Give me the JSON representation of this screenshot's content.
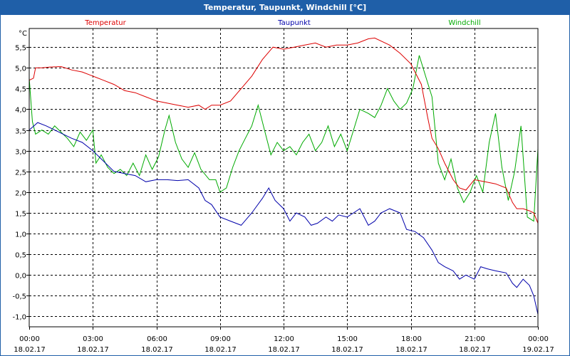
{
  "window": {
    "title": "Temperatur, Taupunkt, Windchill [°C]"
  },
  "chart_data": {
    "type": "line",
    "title": "Temperatur, Taupunkt, Windchill [°C]",
    "ylabel": "°C",
    "ylim": [
      -1.25,
      5.95
    ],
    "xlim": [
      0,
      24
    ],
    "grid": true,
    "legend_position": "top",
    "y_ticks": [
      "5,5",
      "5,0",
      "4,5",
      "4,0",
      "3,5",
      "3,0",
      "2,5",
      "2,0",
      "1,5",
      "1,0",
      "0,5",
      "0,0",
      "-0,5",
      "-1,0"
    ],
    "y_tick_values": [
      5.5,
      5.0,
      4.5,
      4.0,
      3.5,
      3.0,
      2.5,
      2.0,
      1.5,
      1.0,
      0.5,
      0.0,
      -0.5,
      -1.0
    ],
    "x_ticks": [
      {
        "time": "00:00",
        "date": "18.02.17",
        "h": 0
      },
      {
        "time": "03:00",
        "date": "18.02.17",
        "h": 3
      },
      {
        "time": "06:00",
        "date": "18.02.17",
        "h": 6
      },
      {
        "time": "09:00",
        "date": "18.02.17",
        "h": 9
      },
      {
        "time": "12:00",
        "date": "18.02.17",
        "h": 12
      },
      {
        "time": "15:00",
        "date": "18.02.17",
        "h": 15
      },
      {
        "time": "18:00",
        "date": "18.02.17",
        "h": 18
      },
      {
        "time": "21:00",
        "date": "18.02.17",
        "h": 21
      },
      {
        "time": "00:00",
        "date": "19.02.17",
        "h": 24
      }
    ],
    "series": [
      {
        "name": "Temperatur",
        "color": "#dd0000",
        "points": [
          [
            0,
            4.7
          ],
          [
            0.2,
            4.75
          ],
          [
            0.3,
            5.0
          ],
          [
            0.6,
            5.0
          ],
          [
            1.0,
            5.02
          ],
          [
            1.5,
            5.03
          ],
          [
            2.0,
            4.95
          ],
          [
            2.5,
            4.9
          ],
          [
            3.0,
            4.8
          ],
          [
            3.5,
            4.7
          ],
          [
            4.0,
            4.6
          ],
          [
            4.5,
            4.45
          ],
          [
            5.0,
            4.4
          ],
          [
            5.5,
            4.3
          ],
          [
            6.0,
            4.2
          ],
          [
            6.5,
            4.15
          ],
          [
            7.0,
            4.1
          ],
          [
            7.5,
            4.05
          ],
          [
            8.0,
            4.1
          ],
          [
            8.3,
            4.0
          ],
          [
            8.6,
            4.1
          ],
          [
            9.0,
            4.1
          ],
          [
            9.5,
            4.2
          ],
          [
            10.0,
            4.5
          ],
          [
            10.5,
            4.8
          ],
          [
            11.0,
            5.2
          ],
          [
            11.5,
            5.5
          ],
          [
            12.0,
            5.45
          ],
          [
            12.5,
            5.5
          ],
          [
            13.0,
            5.55
          ],
          [
            13.5,
            5.6
          ],
          [
            14.0,
            5.5
          ],
          [
            14.5,
            5.55
          ],
          [
            15.0,
            5.55
          ],
          [
            15.5,
            5.6
          ],
          [
            16.0,
            5.7
          ],
          [
            16.3,
            5.72
          ],
          [
            17.0,
            5.55
          ],
          [
            17.5,
            5.35
          ],
          [
            18.0,
            5.1
          ],
          [
            18.5,
            4.6
          ],
          [
            18.8,
            3.8
          ],
          [
            19.0,
            3.3
          ],
          [
            19.3,
            3.05
          ],
          [
            19.6,
            2.7
          ],
          [
            20.0,
            2.3
          ],
          [
            20.3,
            2.1
          ],
          [
            20.6,
            2.05
          ],
          [
            21.0,
            2.3
          ],
          [
            21.5,
            2.25
          ],
          [
            22.0,
            2.2
          ],
          [
            22.5,
            2.1
          ],
          [
            22.8,
            1.75
          ],
          [
            23.0,
            1.6
          ],
          [
            23.3,
            1.6
          ],
          [
            23.6,
            1.55
          ],
          [
            23.8,
            1.5
          ],
          [
            24.0,
            1.25
          ]
        ]
      },
      {
        "name": "Taupunkt",
        "color": "#0000aa",
        "points": [
          [
            0,
            3.5
          ],
          [
            0.4,
            3.68
          ],
          [
            0.8,
            3.6
          ],
          [
            1.2,
            3.5
          ],
          [
            1.6,
            3.4
          ],
          [
            2.0,
            3.3
          ],
          [
            2.5,
            3.2
          ],
          [
            3.0,
            3.0
          ],
          [
            3.3,
            2.85
          ],
          [
            3.6,
            2.7
          ],
          [
            4.0,
            2.5
          ],
          [
            4.5,
            2.45
          ],
          [
            5.0,
            2.4
          ],
          [
            5.5,
            2.25
          ],
          [
            6.0,
            2.3
          ],
          [
            6.5,
            2.3
          ],
          [
            7.0,
            2.28
          ],
          [
            7.5,
            2.3
          ],
          [
            8.0,
            2.1
          ],
          [
            8.3,
            1.8
          ],
          [
            8.6,
            1.7
          ],
          [
            9.0,
            1.4
          ],
          [
            9.5,
            1.3
          ],
          [
            10.0,
            1.2
          ],
          [
            10.5,
            1.5
          ],
          [
            11.0,
            1.85
          ],
          [
            11.3,
            2.1
          ],
          [
            11.6,
            1.8
          ],
          [
            12.0,
            1.6
          ],
          [
            12.3,
            1.3
          ],
          [
            12.6,
            1.5
          ],
          [
            13.0,
            1.4
          ],
          [
            13.3,
            1.2
          ],
          [
            13.6,
            1.25
          ],
          [
            14.0,
            1.4
          ],
          [
            14.3,
            1.3
          ],
          [
            14.6,
            1.45
          ],
          [
            15.0,
            1.4
          ],
          [
            15.3,
            1.5
          ],
          [
            15.6,
            1.6
          ],
          [
            16.0,
            1.2
          ],
          [
            16.3,
            1.3
          ],
          [
            16.6,
            1.5
          ],
          [
            17.0,
            1.6
          ],
          [
            17.5,
            1.5
          ],
          [
            17.8,
            1.1
          ],
          [
            18.2,
            1.05
          ],
          [
            18.6,
            0.9
          ],
          [
            19.0,
            0.6
          ],
          [
            19.3,
            0.3
          ],
          [
            19.6,
            0.2
          ],
          [
            20.0,
            0.1
          ],
          [
            20.3,
            -0.1
          ],
          [
            20.6,
            0.0
          ],
          [
            21.0,
            -0.1
          ],
          [
            21.3,
            0.2
          ],
          [
            21.6,
            0.15
          ],
          [
            22.0,
            0.1
          ],
          [
            22.5,
            0.05
          ],
          [
            22.8,
            -0.2
          ],
          [
            23.0,
            -0.3
          ],
          [
            23.3,
            -0.1
          ],
          [
            23.6,
            -0.25
          ],
          [
            23.8,
            -0.5
          ],
          [
            24.0,
            -0.95
          ]
        ]
      },
      {
        "name": "Windchill",
        "color": "#00aa00",
        "points": [
          [
            0,
            4.75
          ],
          [
            0.15,
            3.7
          ],
          [
            0.3,
            3.4
          ],
          [
            0.6,
            3.5
          ],
          [
            0.9,
            3.4
          ],
          [
            1.2,
            3.6
          ],
          [
            1.5,
            3.45
          ],
          [
            1.8,
            3.3
          ],
          [
            2.1,
            3.1
          ],
          [
            2.4,
            3.45
          ],
          [
            2.7,
            3.25
          ],
          [
            3.0,
            3.5
          ],
          [
            3.15,
            2.7
          ],
          [
            3.4,
            2.9
          ],
          [
            3.7,
            2.6
          ],
          [
            4.0,
            2.45
          ],
          [
            4.3,
            2.55
          ],
          [
            4.6,
            2.4
          ],
          [
            4.9,
            2.7
          ],
          [
            5.2,
            2.4
          ],
          [
            5.5,
            2.9
          ],
          [
            5.8,
            2.55
          ],
          [
            6.1,
            2.85
          ],
          [
            6.4,
            3.5
          ],
          [
            6.6,
            3.85
          ],
          [
            6.9,
            3.2
          ],
          [
            7.2,
            2.8
          ],
          [
            7.5,
            2.6
          ],
          [
            7.8,
            2.95
          ],
          [
            8.1,
            2.55
          ],
          [
            8.5,
            2.3
          ],
          [
            8.8,
            2.3
          ],
          [
            9.0,
            2.0
          ],
          [
            9.3,
            2.1
          ],
          [
            9.6,
            2.6
          ],
          [
            9.9,
            3.0
          ],
          [
            10.2,
            3.3
          ],
          [
            10.5,
            3.6
          ],
          [
            10.8,
            4.1
          ],
          [
            11.1,
            3.5
          ],
          [
            11.4,
            2.9
          ],
          [
            11.7,
            3.2
          ],
          [
            12.0,
            3.0
          ],
          [
            12.3,
            3.1
          ],
          [
            12.6,
            2.9
          ],
          [
            12.9,
            3.2
          ],
          [
            13.2,
            3.4
          ],
          [
            13.5,
            3.0
          ],
          [
            13.8,
            3.2
          ],
          [
            14.1,
            3.6
          ],
          [
            14.4,
            3.1
          ],
          [
            14.7,
            3.4
          ],
          [
            15.0,
            3.0
          ],
          [
            15.3,
            3.5
          ],
          [
            15.6,
            4.0
          ],
          [
            16.0,
            3.9
          ],
          [
            16.3,
            3.8
          ],
          [
            16.6,
            4.1
          ],
          [
            16.9,
            4.5
          ],
          [
            17.2,
            4.2
          ],
          [
            17.5,
            4.0
          ],
          [
            17.8,
            4.15
          ],
          [
            18.1,
            4.5
          ],
          [
            18.4,
            5.3
          ],
          [
            18.7,
            4.8
          ],
          [
            19.0,
            4.3
          ],
          [
            19.3,
            2.7
          ],
          [
            19.6,
            2.3
          ],
          [
            19.9,
            2.8
          ],
          [
            20.2,
            2.1
          ],
          [
            20.5,
            1.75
          ],
          [
            20.8,
            2.0
          ],
          [
            21.1,
            2.4
          ],
          [
            21.4,
            2.0
          ],
          [
            21.7,
            3.2
          ],
          [
            22.0,
            3.9
          ],
          [
            22.3,
            2.6
          ],
          [
            22.6,
            1.8
          ],
          [
            22.9,
            2.5
          ],
          [
            23.2,
            3.6
          ],
          [
            23.5,
            1.4
          ],
          [
            23.8,
            1.3
          ],
          [
            24.0,
            3.05
          ]
        ]
      }
    ]
  }
}
